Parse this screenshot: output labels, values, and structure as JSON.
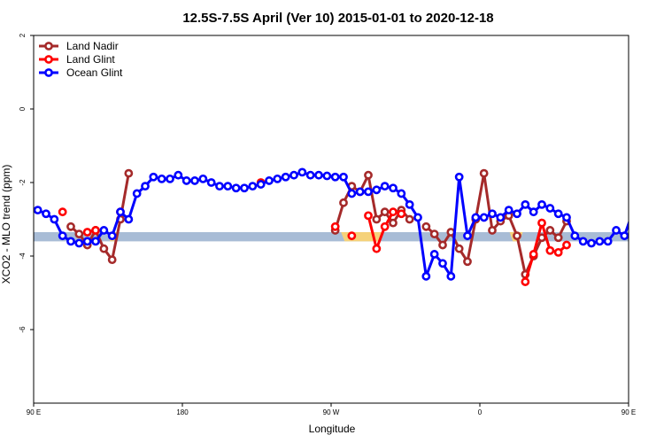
{
  "chart_data": {
    "type": "line",
    "title": "12.5S-7.5S April (Ver 10)   2015-01-01 to 2020-12-18",
    "xlabel": "Longitude",
    "ylabel": "XCO2 - MLO trend (ppm)",
    "xlim": [
      90,
      450
    ],
    "ylim": [
      -8,
      2
    ],
    "x_ticks": [
      {
        "value": 90,
        "label": "90 E"
      },
      {
        "value": 180,
        "label": "180"
      },
      {
        "value": 270,
        "label": "90 W"
      },
      {
        "value": 360,
        "label": "0"
      },
      {
        "value": 450,
        "label": "90 E"
      },
      {
        "value": 540,
        "label": "180"
      }
    ],
    "y_ticks": [
      {
        "value": 2,
        "label": "2"
      },
      {
        "value": 0,
        "label": "0"
      },
      {
        "value": -2,
        "label": "-2"
      },
      {
        "value": -4,
        "label": "-4"
      },
      {
        "value": -6,
        "label": "-6"
      }
    ],
    "reference_band": {
      "y_min": -3.6,
      "y_max": -3.35,
      "color": "#a8bcd6"
    },
    "land_shading": {
      "color": "#f5d27a",
      "y_min": -3.6,
      "y_max": -3.35,
      "ranges": [
        [
          135,
          140
        ],
        [
          276,
          302
        ],
        [
          378,
          386
        ],
        [
          482,
          486
        ]
      ]
    },
    "legend": {
      "position": "top-left"
    },
    "series": [
      {
        "name": "Land Nadir",
        "color": "#a52a2a",
        "x": [
          112.5,
          117.5,
          122.5,
          127.5,
          132.5,
          137.5,
          142.5,
          147.5,
          272.5,
          277.5,
          282.5,
          287.5,
          292.5,
          297.5,
          302.5,
          307.5,
          312.5,
          317.5,
          327.5,
          332.5,
          337.5,
          342.5,
          347.5,
          352.5,
          357.5,
          362.5,
          367.5,
          372.5,
          377.5,
          382.5,
          387.5,
          392.5,
          397.5,
          402.5,
          407.5,
          412.5
        ],
        "y": [
          -3.2,
          -3.4,
          -3.7,
          -3.3,
          -3.8,
          -4.1,
          -3.0,
          -1.75,
          -3.3,
          -2.55,
          -2.1,
          -2.25,
          -1.8,
          -3.0,
          -2.8,
          -3.1,
          -2.75,
          -3.0,
          -3.2,
          -3.4,
          -3.7,
          -3.35,
          -3.8,
          -4.15,
          -3.0,
          -1.75,
          -3.3,
          -3.05,
          -2.9,
          -3.45,
          -4.5,
          -4.0,
          -3.5,
          -3.3,
          -3.5,
          -3.05
        ]
      },
      {
        "name": "Land Glint",
        "color": "#ff0000",
        "x": [
          107.5,
          122.5,
          127.5,
          142.5,
          227.5,
          272.5,
          282.5,
          292.5,
          297.5,
          302.5,
          307.5,
          312.5,
          387.5,
          392.5,
          397.5,
          402.5,
          407.5,
          412.5,
          462.5,
          467.5,
          472.5,
          477.5,
          482.5,
          487.5
        ],
        "y": [
          -2.8,
          -3.35,
          -3.3,
          -2.8,
          -2.0,
          -3.2,
          -3.45,
          -2.9,
          -3.8,
          -3.2,
          -2.8,
          -2.85,
          -4.7,
          -3.95,
          -3.1,
          -3.85,
          -3.9,
          -3.7,
          -2.8,
          -3.35,
          -3.3,
          -2.8,
          -3.45,
          -3.2
        ]
      },
      {
        "name": "Ocean Glint",
        "color": "#0000ff",
        "x": [
          92.5,
          97.5,
          102.5,
          107.5,
          112.5,
          117.5,
          122.5,
          127.5,
          132.5,
          137.5,
          142.5,
          147.5,
          152.5,
          157.5,
          162.5,
          167.5,
          172.5,
          177.5,
          182.5,
          187.5,
          192.5,
          197.5,
          202.5,
          207.5,
          212.5,
          217.5,
          222.5,
          227.5,
          232.5,
          237.5,
          242.5,
          247.5,
          252.5,
          257.5,
          262.5,
          267.5,
          272.5,
          277.5,
          282.5,
          287.5,
          292.5,
          297.5,
          302.5,
          307.5,
          312.5,
          317.5,
          322.5,
          327.5,
          332.5,
          337.5,
          342.5,
          347.5,
          352.5,
          357.5,
          362.5,
          367.5,
          372.5,
          377.5,
          382.5,
          387.5,
          392.5,
          397.5,
          402.5,
          407.5,
          412.5,
          417.5,
          422.5,
          427.5,
          432.5,
          437.5,
          442.5,
          447.5,
          452.5
        ],
        "y": [
          -2.75,
          -2.85,
          -3.0,
          -3.45,
          -3.6,
          -3.65,
          -3.6,
          -3.6,
          -3.3,
          -3.45,
          -2.8,
          -3.0,
          -2.3,
          -2.1,
          -1.85,
          -1.9,
          -1.9,
          -1.8,
          -1.95,
          -1.95,
          -1.9,
          -2.0,
          -2.1,
          -2.1,
          -2.15,
          -2.15,
          -2.1,
          -2.05,
          -1.95,
          -1.9,
          -1.85,
          -1.8,
          -1.72,
          -1.8,
          -1.8,
          -1.82,
          -1.85,
          -1.85,
          -2.3,
          -2.25,
          -2.25,
          -2.2,
          -2.1,
          -2.15,
          -2.3,
          -2.6,
          -2.95,
          -4.55,
          -3.95,
          -4.2,
          -4.55,
          -1.85,
          -3.45,
          -2.95,
          -2.95,
          -2.85,
          -2.95,
          -2.75,
          -2.85,
          -2.6,
          -2.8,
          -2.6,
          -2.7,
          -2.85,
          -2.95,
          -3.45,
          -3.6,
          -3.65,
          -3.6,
          -3.6,
          -3.3,
          -3.45,
          -2.8
        ]
      }
    ]
  }
}
